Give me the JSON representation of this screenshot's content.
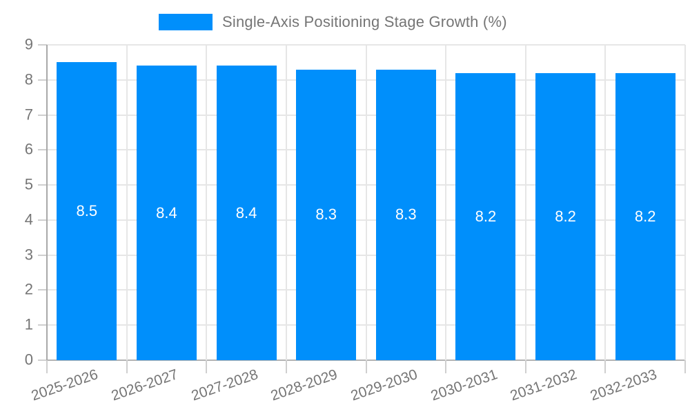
{
  "legend": {
    "label": "Single-Axis Positioning Stage Growth (%)"
  },
  "chart_data": {
    "type": "bar",
    "title": "Single-Axis Positioning Stage Growth (%)",
    "categories": [
      "2025-2026",
      "2026-2027",
      "2027-2028",
      "2028-2029",
      "2029-2030",
      "2030-2031",
      "2031-2032",
      "2032-2033"
    ],
    "values": [
      8.5,
      8.4,
      8.4,
      8.3,
      8.3,
      8.2,
      8.2,
      8.2
    ],
    "value_labels": [
      "8.5",
      "8.4",
      "8.4",
      "8.3",
      "8.3",
      "8.2",
      "8.2",
      "8.2"
    ],
    "xlabel": "",
    "ylabel": "",
    "ylim": [
      0,
      9
    ],
    "yticks": [
      0,
      1,
      2,
      3,
      4,
      5,
      6,
      7,
      8,
      9
    ],
    "grid": true,
    "legend_position": "top",
    "colors": {
      "bar": "#008FFB",
      "value_label": "#ffffff",
      "axis_text": "#757575",
      "gridline": "#e6e6e6",
      "axis_line": "#a8a8a8",
      "baseline": "#b3b3b3",
      "tick": "#cfcfcf",
      "background": "#ffffff"
    }
  }
}
